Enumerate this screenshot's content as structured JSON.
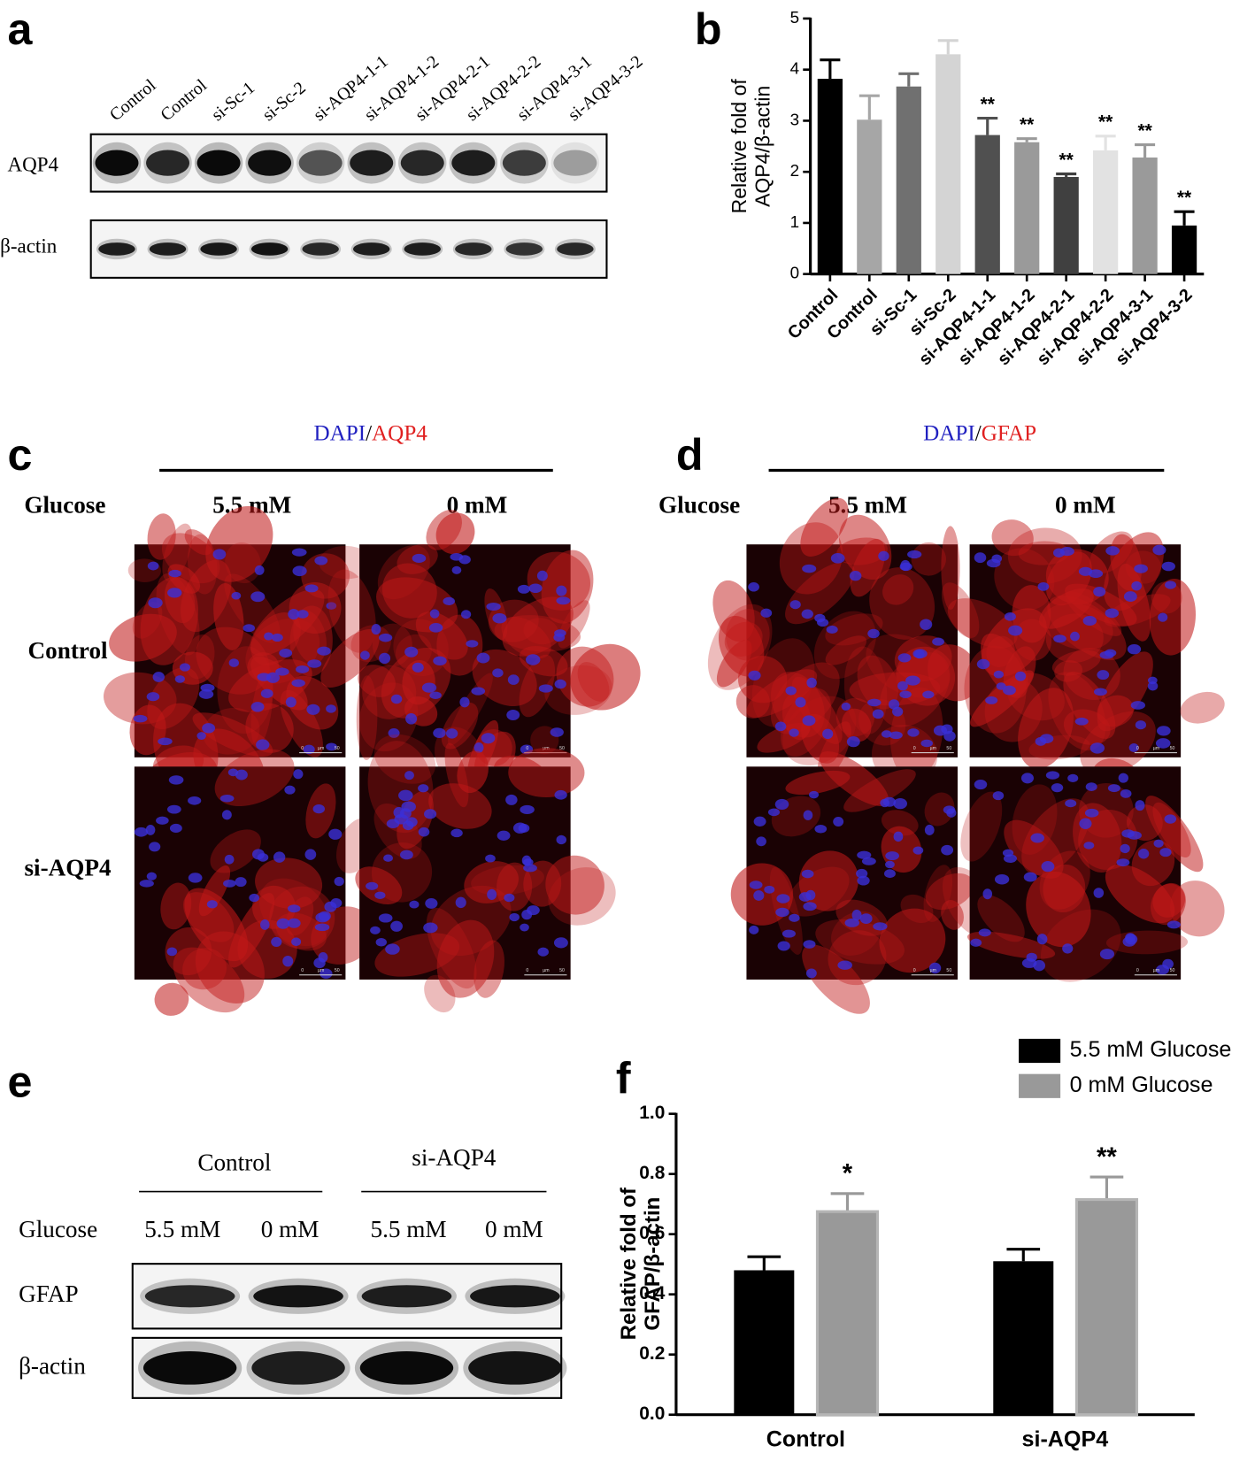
{
  "panel_labels": [
    "a",
    "b",
    "c",
    "d",
    "e",
    "f"
  ],
  "blot_a": {
    "lanes": [
      "Control",
      "Control",
      "si-Sc-1",
      "si-Sc-2",
      "si-AQP4-1-1",
      "si-AQP4-1-2",
      "si-AQP4-2-1",
      "si-AQP4-2-2",
      "si-AQP4-3-1",
      "si-AQP4-3-2"
    ],
    "rows": [
      "AQP4",
      "β-actin"
    ]
  },
  "chart_data": [
    {
      "type": "bar",
      "ylabel": [
        "Relative fold of",
        "AQP4/β-actin"
      ],
      "categories": [
        "Control",
        "Control",
        "si-Sc-1",
        "si-Sc-2",
        "si-AQP4-1-1",
        "si-AQP4-1-2",
        "si-AQP4-2-1",
        "si-AQP4-2-2",
        "si-AQP4-3-1",
        "si-AQP4-3-2"
      ],
      "series": [
        {
          "values": [
            3.82,
            3.02,
            3.67,
            4.3,
            2.72,
            2.58,
            1.9,
            2.42,
            2.28,
            0.95
          ],
          "errors": [
            0.37,
            0.47,
            0.25,
            0.27,
            0.33,
            0.07,
            0.06,
            0.28,
            0.25,
            0.27
          ],
          "colors": [
            "#000000",
            "#a6a6a6",
            "#707070",
            "#d4d4d4",
            "#505050",
            "#9a9a9a",
            "#404040",
            "#e2e2e2",
            "#9a9a9a",
            "#000000"
          ],
          "annotations": [
            null,
            null,
            null,
            null,
            "**",
            "**",
            "**",
            "**",
            "**",
            "**"
          ]
        }
      ],
      "ylim": [
        0,
        5
      ],
      "yticks": [
        0,
        1,
        2,
        3,
        4,
        5
      ]
    },
    {
      "type": "bar",
      "ylabel": [
        "Relative fold of",
        "GFAP/β-actin"
      ],
      "categories": [
        "Control",
        "si-AQP4"
      ],
      "series": [
        {
          "name": "5.5 mM Glucose",
          "color": "#000000",
          "values": [
            0.48,
            0.51
          ],
          "errors": [
            0.045,
            0.04
          ]
        },
        {
          "name": "0 mM Glucose",
          "color": "#999999",
          "values": [
            0.675,
            0.715
          ],
          "errors": [
            0.06,
            0.075
          ],
          "annotations": [
            "*",
            "**"
          ]
        }
      ],
      "ylim": [
        0,
        1
      ],
      "yticks": [
        {
          "value": 0,
          "label": "0.0"
        },
        0.2,
        0.4,
        0.6,
        0.8,
        {
          "value": 1,
          "label": "1.0"
        }
      ],
      "legend": "top-right"
    }
  ],
  "if_c": {
    "title": {
      "stain1": "DAPI",
      "sep": "/",
      "stain2": "AQP4"
    },
    "column_header": "Glucose",
    "columns": [
      "5.5 mM",
      "0 mM"
    ],
    "rows": [
      "Control",
      "si-AQP4"
    ]
  },
  "if_d": {
    "title": {
      "stain1": "DAPI",
      "sep": "/",
      "stain2": "GFAP"
    },
    "column_header": "Glucose",
    "columns": [
      "5.5 mM",
      "0 mM"
    ]
  },
  "scale_bar": [
    "0",
    "µm",
    "50"
  ],
  "blot_e": {
    "groups": [
      "Control",
      "si-AQP4"
    ],
    "row_header": "Glucose",
    "lanes": [
      "5.5 mM",
      "0 mM",
      "5.5 mM",
      "0 mM"
    ],
    "rows": [
      "GFAP",
      "β-actin"
    ]
  }
}
